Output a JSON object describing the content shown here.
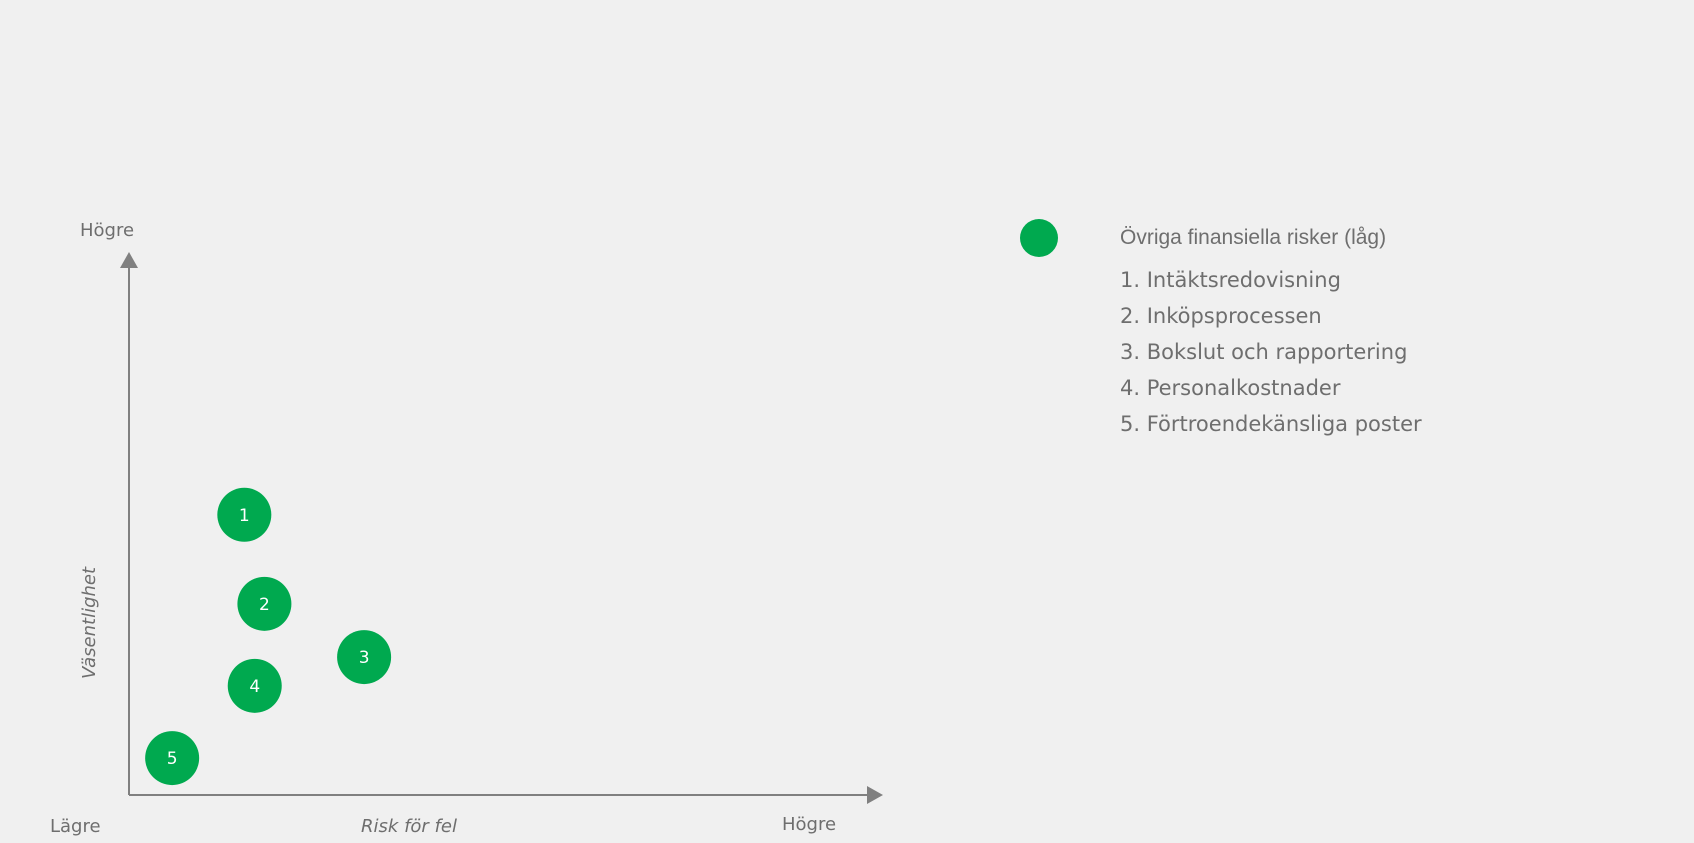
{
  "chart_data": {
    "type": "scatter",
    "title": "",
    "xlabel": "Risk för fel",
    "ylabel": "Väsentlighet",
    "x_low_label": "Lägre",
    "x_high_label": "Högre",
    "y_high_label": "Högre",
    "xlim": [
      0,
      100
    ],
    "ylim": [
      0,
      100
    ],
    "grid": false,
    "legend_position": "top-right",
    "series": [
      {
        "name": "Övriga finansiella risker (låg)",
        "color": "#00a94f",
        "points": [
          {
            "label": "1",
            "x": 15.5,
            "y": 51.6
          },
          {
            "label": "2",
            "x": 18.2,
            "y": 35.2
          },
          {
            "label": "3",
            "x": 31.6,
            "y": 25.4
          },
          {
            "label": "4",
            "x": 16.9,
            "y": 20.1
          },
          {
            "label": "5",
            "x": 5.8,
            "y": 6.8
          }
        ]
      }
    ],
    "legend_items": [
      "1. Intäktsredovisning",
      "2. Inköpsprocessen",
      "3. Bokslut och rapportering",
      "4. Personalkostnader",
      "5. Förtroendekänsliga poster"
    ]
  }
}
